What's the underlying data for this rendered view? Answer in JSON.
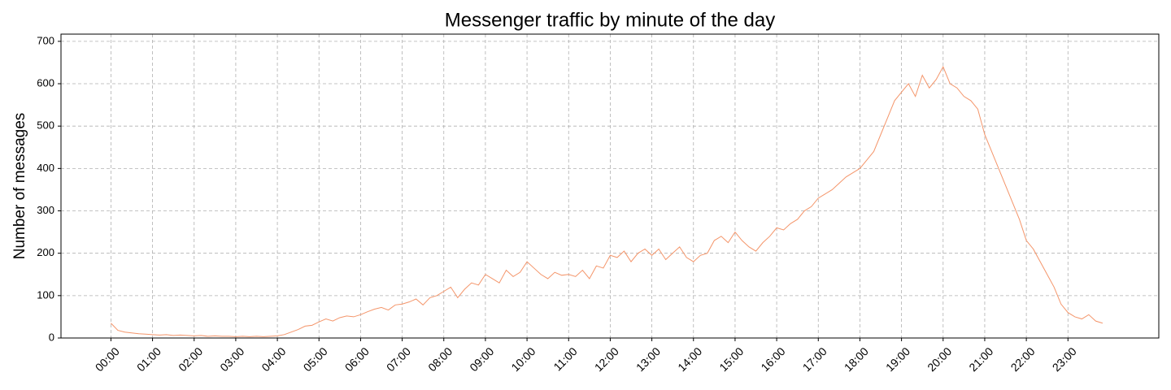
{
  "chart_data": {
    "type": "line",
    "title": "Messenger traffic by minute of the day",
    "y_label": "Number of messages",
    "x": [
      0,
      10,
      20,
      30,
      40,
      50,
      60,
      70,
      80,
      90,
      100,
      110,
      120,
      130,
      140,
      150,
      160,
      170,
      180,
      190,
      200,
      210,
      220,
      230,
      240,
      250,
      260,
      270,
      280,
      290,
      300,
      310,
      320,
      330,
      340,
      350,
      360,
      370,
      380,
      390,
      400,
      410,
      420,
      430,
      440,
      450,
      460,
      470,
      480,
      490,
      500,
      510,
      520,
      530,
      540,
      550,
      560,
      570,
      580,
      590,
      600,
      610,
      620,
      630,
      640,
      650,
      660,
      670,
      680,
      690,
      700,
      710,
      720,
      730,
      740,
      750,
      760,
      770,
      780,
      790,
      800,
      810,
      820,
      830,
      840,
      850,
      860,
      870,
      880,
      890,
      900,
      910,
      920,
      930,
      940,
      950,
      960,
      970,
      980,
      990,
      1000,
      1010,
      1020,
      1030,
      1040,
      1050,
      1060,
      1070,
      1080,
      1090,
      1100,
      1110,
      1120,
      1130,
      1140,
      1150,
      1160,
      1170,
      1180,
      1190,
      1200,
      1210,
      1220,
      1230,
      1240,
      1250,
      1260,
      1270,
      1280,
      1290,
      1300,
      1310,
      1320,
      1330,
      1340,
      1350,
      1360,
      1370,
      1380,
      1390,
      1400,
      1410,
      1420,
      1430
    ],
    "series": [
      {
        "color": "#f4956a",
        "values": [
          35,
          18,
          14,
          12,
          10,
          9,
          8,
          7,
          8,
          6,
          7,
          6,
          5,
          6,
          4,
          5,
          4,
          4,
          3,
          4,
          3,
          4,
          3,
          4,
          5,
          8,
          14,
          20,
          28,
          30,
          38,
          45,
          40,
          48,
          52,
          50,
          55,
          62,
          68,
          72,
          66,
          78,
          80,
          85,
          92,
          78,
          95,
          100,
          110,
          120,
          95,
          115,
          130,
          125,
          150,
          140,
          130,
          160,
          145,
          155,
          180,
          165,
          150,
          140,
          155,
          148,
          150,
          145,
          160,
          140,
          170,
          165,
          195,
          190,
          205,
          180,
          200,
          210,
          195,
          210,
          185,
          200,
          215,
          190,
          180,
          195,
          200,
          230,
          240,
          225,
          250,
          230,
          215,
          205,
          225,
          240,
          260,
          255,
          270,
          280,
          300,
          310,
          330,
          340,
          350,
          365,
          380,
          390,
          400,
          420,
          440,
          480,
          520,
          560,
          580,
          600,
          570,
          620,
          590,
          610,
          640,
          600,
          590,
          570,
          560,
          540,
          480,
          440,
          400,
          360,
          320,
          280,
          230,
          210,
          180,
          150,
          120,
          80,
          60,
          50,
          45,
          55,
          40,
          35
        ]
      }
    ],
    "xlim": [
      -72,
      1511
    ],
    "ylim": [
      0,
      717
    ],
    "xticks": [
      {
        "value": 0,
        "label": "00:00"
      },
      {
        "value": 60,
        "label": "01:00"
      },
      {
        "value": 120,
        "label": "02:00"
      },
      {
        "value": 180,
        "label": "03:00"
      },
      {
        "value": 240,
        "label": "04:00"
      },
      {
        "value": 300,
        "label": "05:00"
      },
      {
        "value": 360,
        "label": "06:00"
      },
      {
        "value": 420,
        "label": "07:00"
      },
      {
        "value": 480,
        "label": "08:00"
      },
      {
        "value": 540,
        "label": "09:00"
      },
      {
        "value": 600,
        "label": "10:00"
      },
      {
        "value": 660,
        "label": "11:00"
      },
      {
        "value": 720,
        "label": "12:00"
      },
      {
        "value": 780,
        "label": "13:00"
      },
      {
        "value": 840,
        "label": "14:00"
      },
      {
        "value": 900,
        "label": "15:00"
      },
      {
        "value": 960,
        "label": "16:00"
      },
      {
        "value": 1020,
        "label": "17:00"
      },
      {
        "value": 1080,
        "label": "18:00"
      },
      {
        "value": 1140,
        "label": "19:00"
      },
      {
        "value": 1200,
        "label": "20:00"
      },
      {
        "value": 1260,
        "label": "21:00"
      },
      {
        "value": 1320,
        "label": "22:00"
      },
      {
        "value": 1380,
        "label": "23:00"
      }
    ],
    "yticks": [
      0,
      100,
      200,
      300,
      400,
      500,
      600,
      700
    ],
    "grid": true
  }
}
